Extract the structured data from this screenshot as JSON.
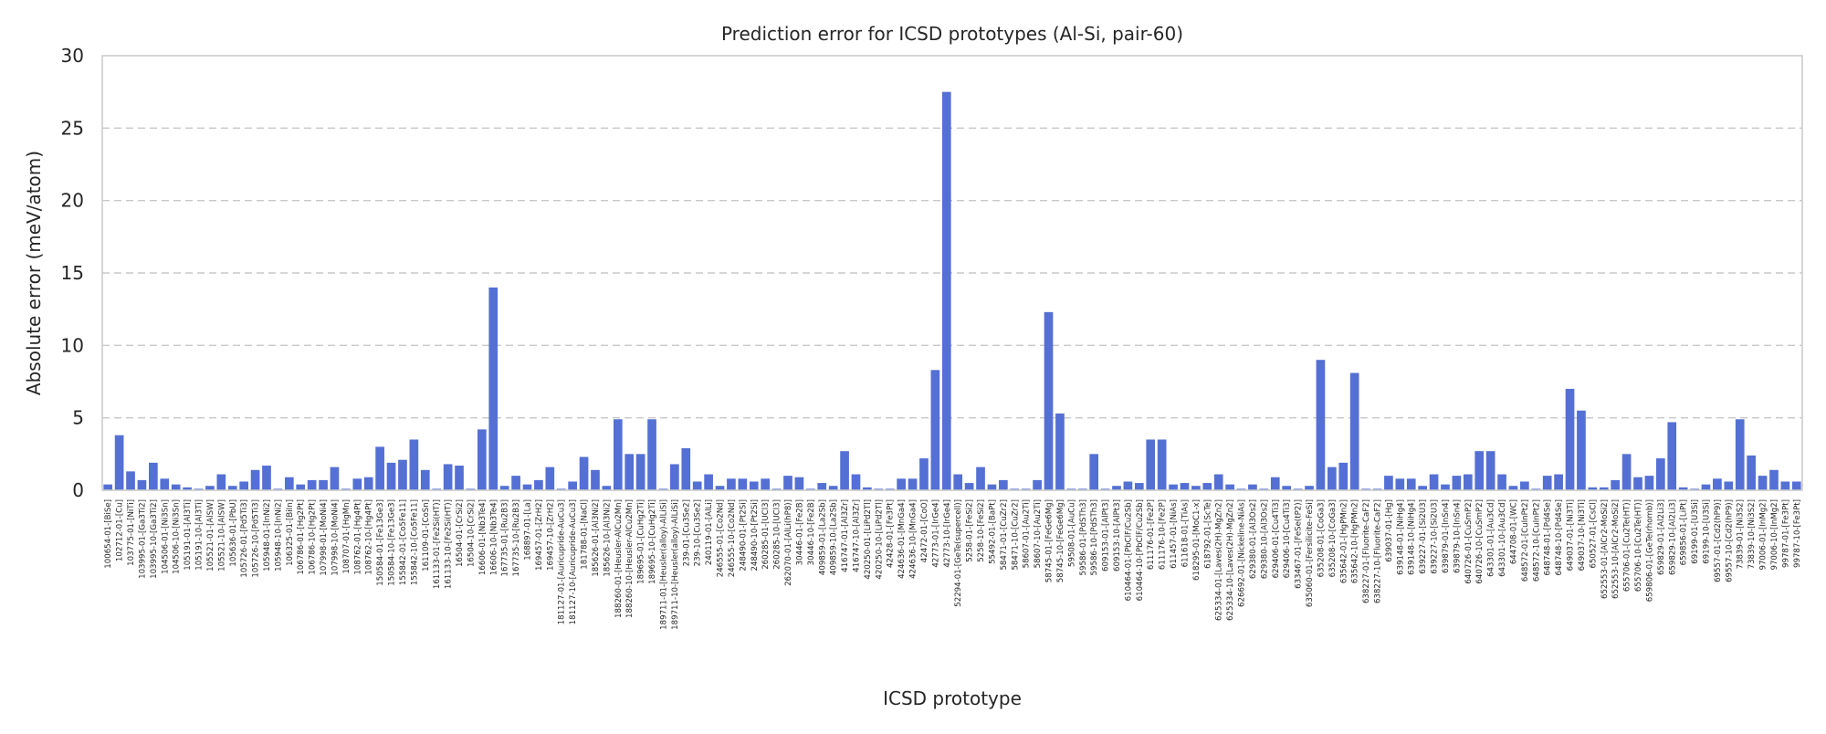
{
  "chart_data": {
    "type": "bar",
    "title": "Prediction error for ICSD prototypes (Al-Si, pair-60)",
    "xlabel": "ICSD prototype",
    "ylabel": "Absolute error (meV/atom)",
    "ylim": [
      0,
      30
    ],
    "yticks": [
      0,
      5,
      10,
      15,
      20,
      25,
      30
    ],
    "grid": "horizontal-dashed",
    "bar_color": "#5470d4",
    "categories": [
      "100654-01-[BiSe]",
      "102712-01-[Cu]",
      "103775-01-[NiTi]",
      "103995-01-[Ga3Ti2]",
      "103995-10-[Ga3Ti2]",
      "104506-01-[Ni3Sn]",
      "104506-10-[Ni3Sn]",
      "105191-01-[Al3Ti]",
      "105191-10-[Al3Ti]",
      "105521-01-[AlSW]",
      "105521-10-[AlSW]",
      "105636-01-[PbU]",
      "105726-01-[Pd5Ti3]",
      "105726-10-[Pd5Ti3]",
      "105948-01-[InNi2]",
      "105948-10-[InNi2]",
      "106325-01-[BiIn]",
      "106786-01-[Hg2Pt]",
      "106786-10-[Hg2Pt]",
      "107998-01-[MoNi4]",
      "107998-10-[MoNi4]",
      "108707-01-[HgMn]",
      "108762-01-[Hg4Pt]",
      "108762-10-[Hg4Pt]",
      "150584-01-[Fe13Ge3]",
      "150584-10-[Fe13Ge3]",
      "155842-01-[Co5Fe11]",
      "155842-10-[Co5Fe11]",
      "161109-01-[CoSn]",
      "161133-01-[Fe2Si(HT)]",
      "161133-10-[Fe2Si(HT)]",
      "16504-01-[CrSi2]",
      "16504-10-[CrSi2]",
      "16606-01-[Nb3Te4]",
      "16606-10-[Nb3Te4]",
      "167735-01-[Ru2B3]",
      "167735-10-[Ru2B3]",
      "168897-01-[La]",
      "169457-01-[ZrH2]",
      "169457-10-[ZrH2]",
      "181127-01-[Auricupride-AuCu3]",
      "181127-10-[Auricupride-AuCu3]",
      "181788-01-[NaCl]",
      "185626-01-[Al3Ni2]",
      "185626-10-[Al3Ni2]",
      "188260-01-[Heusler-AlCu2Mn]",
      "188260-10-[Heusler-AlCu2Mn]",
      "189695-01-[CuHg2Ti]",
      "189695-10-[CuHg2Ti]",
      "189711-01-[Heusler(alloy)-AlLiSi]",
      "189711-10-[Heusler(alloy)-AlLiSi]",
      "239-01-[Cu3Se2]",
      "239-10-[Cu3Se2]",
      "240119-01-[AlLi]",
      "246555-01-[Co2Nd]",
      "246555-10-[Co2Nd]",
      "248490-01-[Pt2Si]",
      "248490-10-[Pt2Si]",
      "260285-01-[UCl3]",
      "260285-10-[UCl3]",
      "262070-01-[AlLi(hP8)]",
      "30446-01-[Fe2B]",
      "30446-10-[Fe2B]",
      "409859-01-[La2Sb]",
      "409859-10-[La2Sb]",
      "416747-01-[Al3Zr]",
      "416747-10-[Al3Zr]",
      "420250-01-[LiPd2Tl]",
      "420250-10-[LiPd2Tl]",
      "42428-01-[Fe3Pt]",
      "424636-01-[MnGa4]",
      "424636-10-[MnGa4]",
      "42472-01-[CoO]",
      "42773-01-[IrGe4]",
      "42773-10-[IrGe4]",
      "52294-01-[GeTe(supercell)]",
      "5258-01-[FeSi2]",
      "5258-10-[FeSi2]",
      "55492-01-[BaPt]",
      "58471-01-[CuZr2]",
      "58471-10-[CuZr2]",
      "58607-01-[Au2Ti]",
      "58607-10-[Au2Ti]",
      "58745-01-[FeGe6Mg]",
      "58745-10-[FeGe6Mg]",
      "59508-01-[AuCu]",
      "59586-01-[PdSTh3]",
      "59586-10-[PdSTh3]",
      "609153-01-[AlPt3]",
      "609153-10-[AlPt3]",
      "610464-01-[PbClF/Cu2Sb]",
      "610464-10-[PbClF/Cu2Sb]",
      "611176-01-[Fe2P]",
      "611176-10-[Fe2P]",
      "611457-01-[NiAs]",
      "611618-01-[TiAs]",
      "618295-01-[MoC1-x]",
      "618792-01-[ScTe]",
      "625334-01-[Laves(2H)-MgZn2]",
      "625334-10-[Laves(2H)-MgZn2]",
      "626692-01-[Nickeline-NiAs]",
      "629380-01-[Al3Os2]",
      "629380-10-[Al3Os2]",
      "629406-01-[Cu4Ti3]",
      "629406-10-[Cu4Ti3]",
      "633467-01-[FeSe(tP2)]",
      "635060-01-[Fersilicite-FeSi]",
      "635208-01-[CoGa3]",
      "635208-10-[CoGa3]",
      "635642-01-[HgPMn2]",
      "635642-10-[HgPMn2]",
      "638227-01-[Fluorite-CaF2]",
      "638227-10-[Fluorite-CaF2]",
      "639037-01-[Hg]",
      "639148-01-[NiHg4]",
      "639148-10-[NiHg4]",
      "639227-01-[Si2U3]",
      "639227-10-[Si2U3]",
      "639879-01-[InSn4]",
      "639879-10-[InSn4]",
      "640726-01-[CuSmP2]",
      "640726-10-[CuSmP2]",
      "643301-01-[Au3Cd]",
      "643301-10-[Au3Cd]",
      "644708-01-[WC]",
      "648572-01-[CuInPt2]",
      "648572-10-[CuInPt2]",
      "648748-01-[Pd4Se]",
      "648748-10-[Pd4Se]",
      "649037-01-[Ni3Ti]",
      "649037-10-[Ni3Ti]",
      "650527-01-[CsCl]",
      "652553-01-[AlCr2-MoSi2]",
      "652553-10-[AlCr2-MoSi2]",
      "655706-01-[Cu2Te(HT)]",
      "655706-10-[Cu2Te(HT)]",
      "659806-01-[GeTe(rhomb)]",
      "659829-01-[Al2Li3]",
      "659829-10-[Al2Li3]",
      "659856-01-[LiPt]",
      "69199-01-[U3Si]",
      "69199-10-[U3Si]",
      "69557-01-[Cd2(hP9)]",
      "69557-10-[Cd2(hP9)]",
      "73839-01-[Ni3S2]",
      "73839-10-[Ni3S2]",
      "97006-01-[InMg2]",
      "97006-10-[InMg2]",
      "99787-01-[Fe3Pt]",
      "99787-10-[Fe3Pt]"
    ],
    "values": [
      0.4,
      3.8,
      1.3,
      0.7,
      1.9,
      0.8,
      0.4,
      0.2,
      0.1,
      0.3,
      1.1,
      0.3,
      0.6,
      1.4,
      1.7,
      0.1,
      0.9,
      0.4,
      0.7,
      0.7,
      1.6,
      0.1,
      0.8,
      0.9,
      3.0,
      1.9,
      2.1,
      3.5,
      1.4,
      0.1,
      1.8,
      1.7,
      0.1,
      4.2,
      14.0,
      0.3,
      1.0,
      0.4,
      0.7,
      1.6,
      0.1,
      0.6,
      2.3,
      1.4,
      0.3,
      4.9,
      2.5,
      2.5,
      4.9,
      0.1,
      1.8,
      2.9,
      0.6,
      1.1,
      0.3,
      0.8,
      0.8,
      0.6,
      0.8,
      0.1,
      1.0,
      0.9,
      0.1,
      0.5,
      0.3,
      2.7,
      1.1,
      0.2,
      0.1,
      0.1,
      0.8,
      0.8,
      2.2,
      8.3,
      27.5,
      1.1,
      0.5,
      1.6,
      0.4,
      0.7,
      0.1,
      0.1,
      0.7,
      12.3,
      5.3,
      0.1,
      0.1,
      2.5,
      0.1,
      0.3,
      0.6,
      0.5,
      3.5,
      3.5,
      0.4,
      0.5,
      0.3,
      0.5,
      1.1,
      0.4,
      0.1,
      0.4,
      0.1,
      0.9,
      0.3,
      0.1,
      0.3,
      9.0,
      1.6,
      1.9,
      8.1,
      0.1,
      0.1,
      1.0,
      0.8,
      0.8,
      0.3,
      1.1,
      0.4,
      1.0,
      1.1,
      2.7,
      2.7,
      1.1,
      0.3,
      0.6,
      0.1,
      1.0,
      1.1,
      7.0,
      5.5,
      0.2,
      0.2,
      0.7,
      2.5,
      0.9,
      1.0,
      2.2,
      4.7,
      0.2,
      0.1,
      0.4,
      0.8,
      0.6,
      4.9,
      2.4,
      1.0,
      1.4,
      0.6,
      0.6
    ]
  }
}
